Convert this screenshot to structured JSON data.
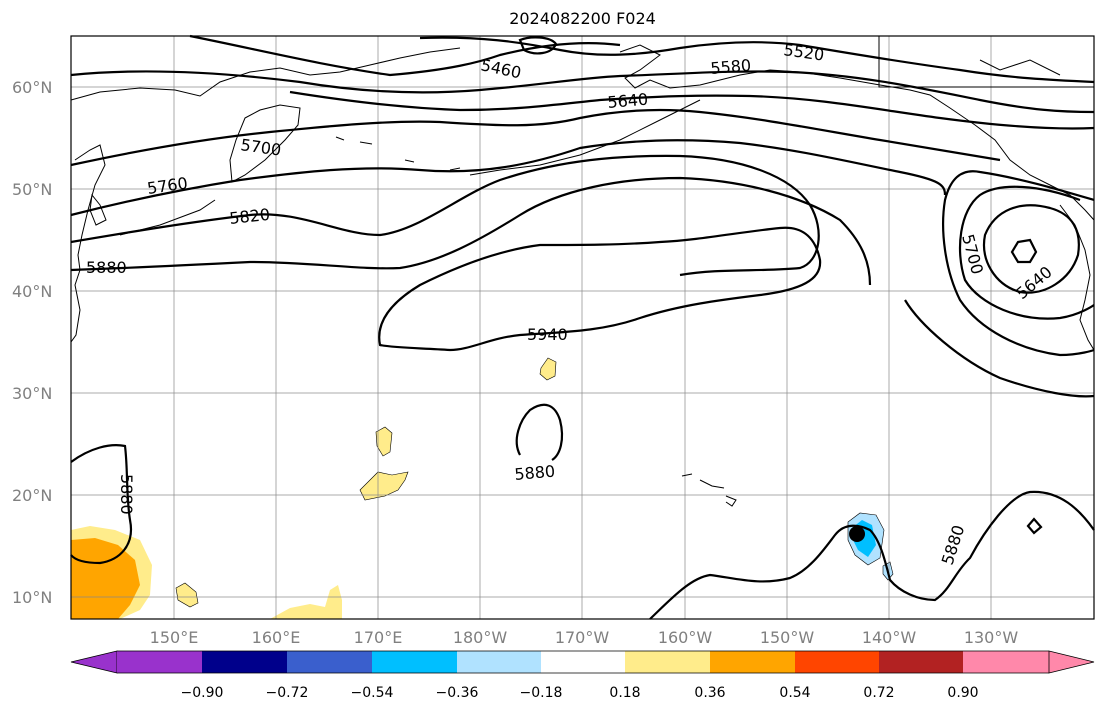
{
  "map": {
    "title": "2024082200 F024",
    "lat_labels": [
      "60°N",
      "50°N",
      "40°N",
      "30°N",
      "20°N",
      "10°N"
    ],
    "lon_labels": [
      "150°E",
      "160°E",
      "170°E",
      "180°W",
      "170°W",
      "160°W",
      "150°W",
      "140°W",
      "130°W"
    ],
    "contour_labels": [
      "5460",
      "5520",
      "5580",
      "5640",
      "5700",
      "5760",
      "5820",
      "5880",
      "5940",
      "5880",
      "5880",
      "5880",
      "5700",
      "5640"
    ],
    "contour_line_color": "#000000",
    "grid_color": "#888888"
  },
  "colorbar": {
    "ticks": [
      "−0.90",
      "−0.72",
      "−0.54",
      "−0.36",
      "−0.18",
      "0.18",
      "0.36",
      "0.54",
      "0.72",
      "0.90"
    ],
    "colors": [
      "#9932cc",
      "#00008b",
      "#3a5fcd",
      "#00bfff",
      "#b0e2ff",
      "#ffffff",
      "#ffec8b",
      "#ffa500",
      "#ff4500",
      "#b22222",
      "#ff88aa"
    ]
  }
}
